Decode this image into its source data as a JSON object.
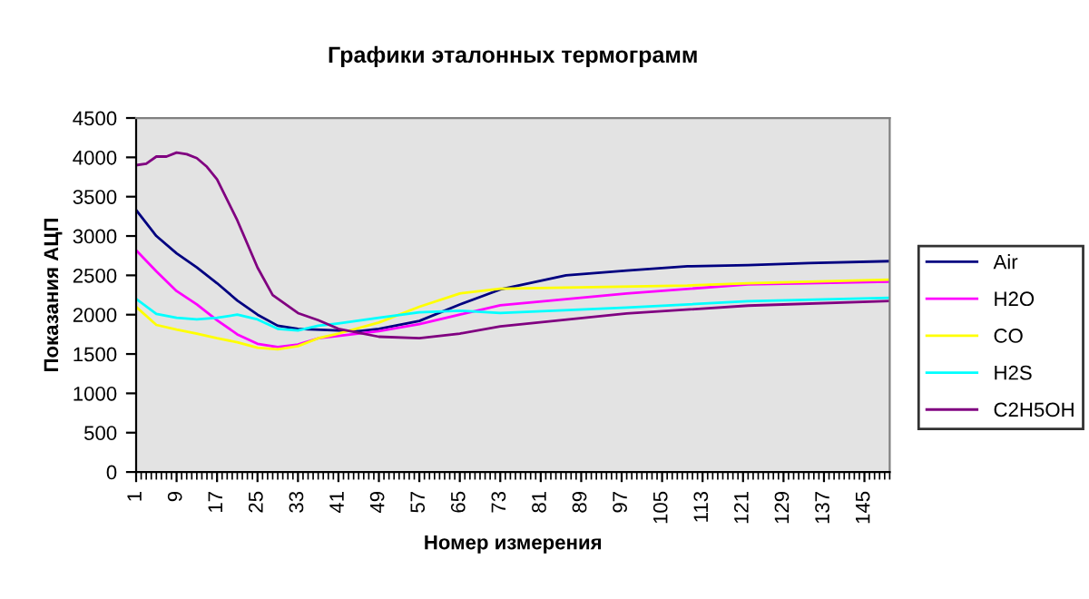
{
  "chart_data": {
    "type": "line",
    "title": "Графики эталонных термограмм",
    "xlabel": "Номер измерения",
    "ylabel": "Показания АЦП",
    "xlim": [
      1,
      150
    ],
    "xticks": [
      1,
      9,
      17,
      25,
      33,
      41,
      49,
      57,
      65,
      73,
      81,
      89,
      97,
      105,
      113,
      121,
      129,
      137,
      145
    ],
    "ylim": [
      0,
      4500
    ],
    "yticks": [
      0,
      500,
      1000,
      1500,
      2000,
      2500,
      3000,
      3500,
      4000,
      4500
    ],
    "grid": false,
    "legend": "right",
    "marker": "none",
    "line_style": "solid",
    "series": [
      {
        "name": "Air",
        "color": "#000080",
        "x": [
          1,
          5,
          9,
          13,
          17,
          21,
          25,
          29,
          33,
          41,
          45,
          49,
          57,
          65,
          73,
          86,
          98,
          110,
          122,
          134,
          150
        ],
        "values": [
          3330,
          3000,
          2780,
          2600,
          2400,
          2180,
          2000,
          1860,
          1820,
          1800,
          1790,
          1820,
          1920,
          2130,
          2320,
          2500,
          2560,
          2615,
          2630,
          2655,
          2680
        ]
      },
      {
        "name": "H2O",
        "color": "#ff00ff",
        "x": [
          1,
          5,
          9,
          13,
          17,
          21,
          25,
          29,
          33,
          37,
          41,
          49,
          57,
          65,
          73,
          98,
          122,
          150
        ],
        "values": [
          2820,
          2550,
          2300,
          2130,
          1930,
          1750,
          1630,
          1590,
          1620,
          1700,
          1730,
          1790,
          1880,
          2000,
          2120,
          2270,
          2385,
          2420
        ]
      },
      {
        "name": "CO",
        "color": "#ffff00",
        "x": [
          1,
          5,
          9,
          13,
          17,
          21,
          25,
          29,
          33,
          37,
          41,
          49,
          57,
          65,
          73,
          86,
          110,
          122,
          134,
          150
        ],
        "values": [
          2100,
          1870,
          1810,
          1760,
          1700,
          1650,
          1580,
          1560,
          1600,
          1700,
          1760,
          1900,
          2100,
          2270,
          2330,
          2345,
          2370,
          2400,
          2420,
          2445
        ]
      },
      {
        "name": "H2S",
        "color": "#00ffff",
        "x": [
          1,
          5,
          9,
          13,
          17,
          21,
          25,
          29,
          33,
          37,
          41,
          49,
          57,
          65,
          73,
          98,
          122,
          150
        ],
        "values": [
          2200,
          2010,
          1960,
          1940,
          1960,
          2000,
          1940,
          1820,
          1800,
          1860,
          1890,
          1960,
          2030,
          2050,
          2020,
          2090,
          2170,
          2215
        ]
      },
      {
        "name": "C2H5OH",
        "color": "#800080",
        "x": [
          1,
          3,
          5,
          7,
          9,
          11,
          13,
          15,
          17,
          21,
          25,
          28,
          33,
          37,
          41,
          49,
          57,
          65,
          73,
          98,
          122,
          150
        ],
        "values": [
          3900,
          3920,
          4010,
          4010,
          4060,
          4040,
          3990,
          3880,
          3720,
          3200,
          2600,
          2250,
          2020,
          1930,
          1820,
          1720,
          1700,
          1760,
          1850,
          2015,
          2115,
          2175
        ]
      }
    ]
  }
}
